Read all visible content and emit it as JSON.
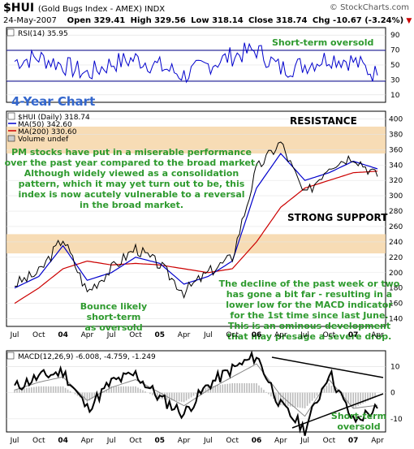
{
  "header": {
    "symbol": "$HUI",
    "name": "(Gold Bugs Index - AMEX) INDX",
    "site": "© StockCharts.com",
    "date": "24-May-2007",
    "open": "Open 329.41",
    "high": "High 329.56",
    "low": "Low 318.14",
    "close": "Close 318.74",
    "chg": "Chg -10.67 (-3.24%)",
    "chg_marker": "▼"
  },
  "rsi_panel": {
    "label": "RSI(14) 35.95",
    "annotation": "Short-term oversold",
    "ticks": [
      "90",
      "70",
      "50",
      "30",
      "10"
    ]
  },
  "price_panel": {
    "chart_label": "4-Year Chart",
    "legend": [
      "$HUI (Daily) 318.74",
      "MA(50) 342.60",
      "MA(200) 330.60",
      "Volume undef"
    ],
    "resistance_label": "RESISTANCE",
    "support_label": "STRONG SUPPORT",
    "commentary": [
      "PM stocks have put in a miserable performance",
      "over the past year compared to the broad market.",
      "Although widely viewed as a consolidation",
      "pattern, which it may yet turn out to be, this",
      "index is now acutely vulnerable to a reversal",
      "in the broad market."
    ],
    "bounce_note": [
      "Bounce likely",
      "short-term",
      "as oversold"
    ],
    "macd_note": [
      "The decline of the past week or two",
      "has gone a bit far - resulting in a",
      "lower low for the MACD indicator",
      "for the 1st time since last June.",
      "This is an ominous development",
      "that may presage a severe drop."
    ],
    "ticks": [
      "400",
      "380",
      "360",
      "340",
      "320",
      "300",
      "280",
      "260",
      "240",
      "220",
      "200",
      "180",
      "160",
      "140"
    ]
  },
  "macd_panel": {
    "label": "MACD(12,26,9) -6.008, -4.759, -1.249",
    "annotation": [
      "Short-term",
      "oversold"
    ],
    "ticks": [
      "10",
      "0",
      "-10"
    ]
  },
  "x_axis": [
    "Jul",
    "Oct",
    "04",
    "Apr",
    "Jul",
    "Oct",
    "05",
    "Apr",
    "Jul",
    "Oct",
    "06",
    "Apr",
    "Jul",
    "Oct",
    "07",
    "Apr"
  ],
  "colors": {
    "price": "#000000",
    "ma50": "#0000cc",
    "ma200": "#cc0000",
    "annotation": "#2e9a2e",
    "band": "#f6d6a8",
    "title_blue": "#3366cc"
  },
  "chart_data": [
    {
      "type": "line",
      "title": "RSI(14) 35.95",
      "x": [
        "Jul",
        "Oct",
        "04",
        "Apr",
        "Jul",
        "Oct",
        "05",
        "Apr",
        "Jul",
        "Oct",
        "06",
        "Apr",
        "Jul",
        "Oct",
        "07",
        "Apr"
      ],
      "series": [
        {
          "name": "RSI(14)",
          "values": [
            55,
            60,
            50,
            38,
            52,
            58,
            48,
            36,
            50,
            62,
            70,
            45,
            50,
            60,
            55,
            36
          ]
        }
      ],
      "ylim": [
        0,
        100
      ],
      "annotations": [
        "Short-term oversold"
      ]
    },
    {
      "type": "line",
      "title": "$HUI (Daily) 318.74",
      "x": [
        "Jul",
        "Oct",
        "04",
        "Apr",
        "Jul",
        "Oct",
        "05",
        "Apr",
        "Jul",
        "Oct",
        "06",
        "Apr",
        "Jul",
        "Oct",
        "07",
        "Apr"
      ],
      "series": [
        {
          "name": "$HUI (Daily) 318.74",
          "values": [
            185,
            200,
            245,
            175,
            205,
            232,
            210,
            175,
            200,
            220,
            335,
            370,
            300,
            340,
            352,
            325
          ]
        },
        {
          "name": "MA(50) 342.60",
          "values": [
            180,
            195,
            235,
            190,
            200,
            220,
            212,
            185,
            195,
            215,
            310,
            355,
            320,
            330,
            345,
            335
          ]
        },
        {
          "name": "MA(200) 330.60",
          "values": [
            160,
            180,
            205,
            215,
            210,
            212,
            210,
            205,
            200,
            205,
            240,
            285,
            310,
            320,
            330,
            332
          ]
        }
      ],
      "ylim": [
        130,
        410
      ],
      "bands": [
        {
          "label": "RESISTANCE",
          "range": [
            355,
            390
          ]
        },
        {
          "label": "STRONG SUPPORT",
          "range": [
            225,
            250
          ]
        }
      ]
    },
    {
      "type": "line",
      "title": "MACD(12,26,9) -6.008, -4.759, -1.249",
      "x": [
        "Jul",
        "Oct",
        "04",
        "Apr",
        "Jul",
        "Oct",
        "05",
        "Apr",
        "Jul",
        "Oct",
        "06",
        "Apr",
        "Jul",
        "Oct",
        "07",
        "Apr"
      ],
      "series": [
        {
          "name": "MACD",
          "values": [
            2,
            6,
            8,
            -6,
            4,
            7,
            -2,
            -8,
            3,
            9,
            14,
            -5,
            -14,
            8,
            -11,
            -6
          ]
        },
        {
          "name": "Signal",
          "values": [
            1,
            4,
            6,
            -3,
            2,
            5,
            0,
            -5,
            1,
            6,
            11,
            -1,
            -9,
            5,
            -6,
            -4.8
          ]
        }
      ],
      "ylim": [
        -15,
        16
      ],
      "annotations": [
        "Short-term",
        "oversold"
      ]
    }
  ]
}
